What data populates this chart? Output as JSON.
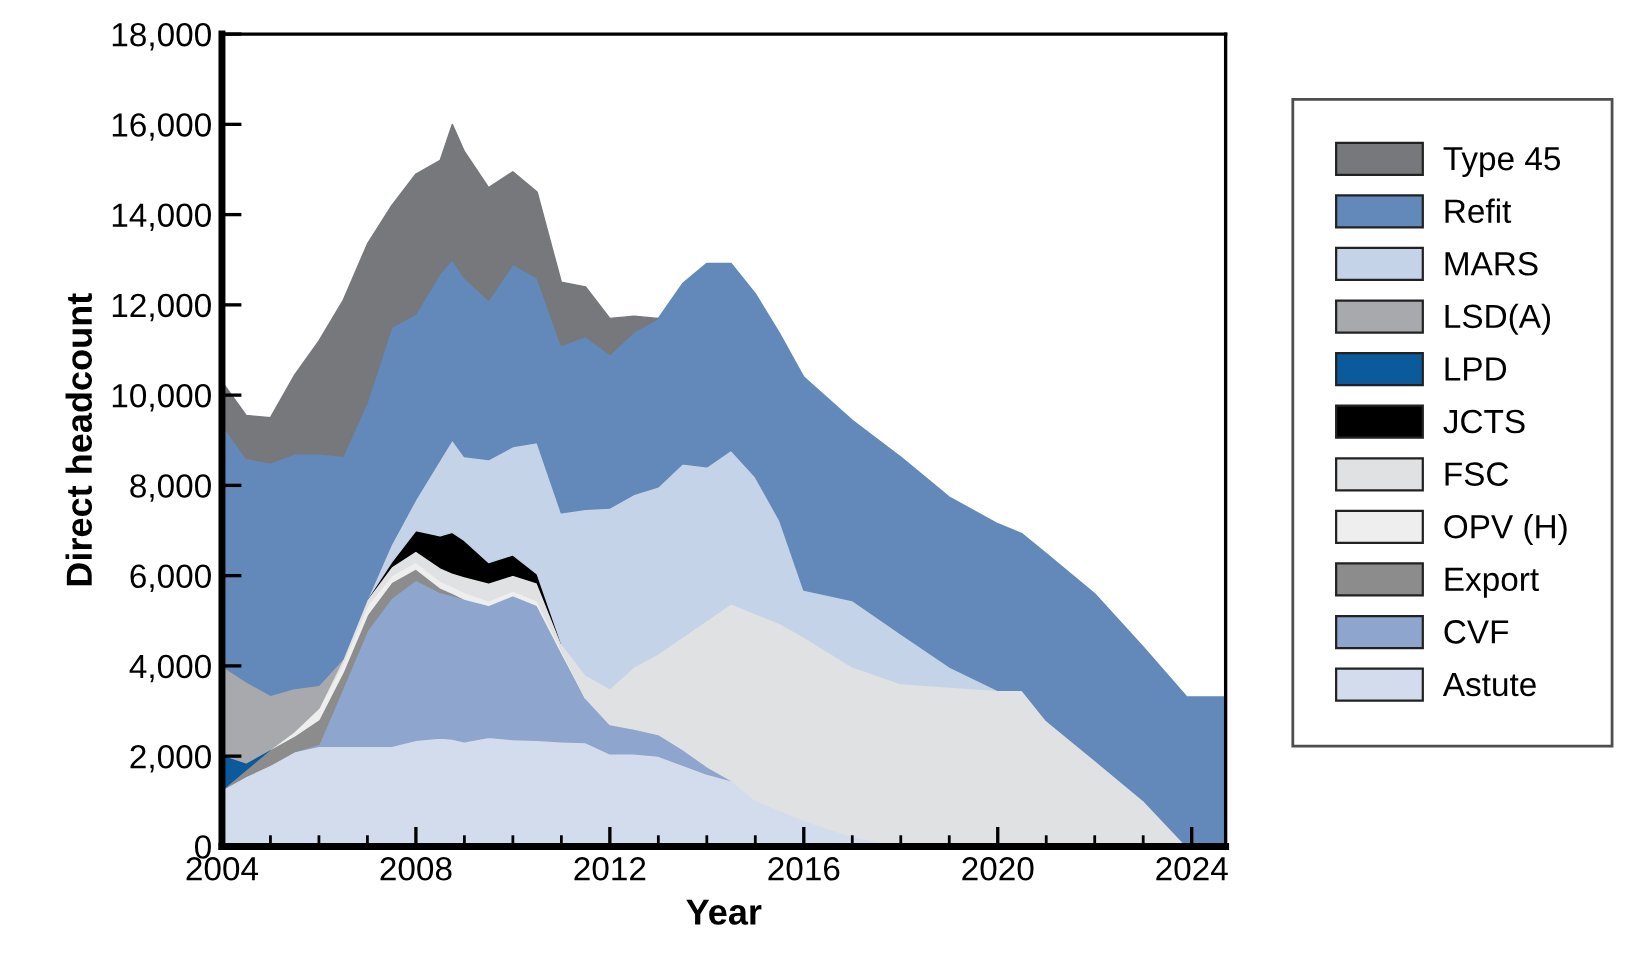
{
  "chart_data": {
    "type": "area",
    "stacked": true,
    "xlabel": "Year",
    "ylabel": "Direct headcount",
    "x": [
      2004,
      2004.5,
      2005,
      2005.5,
      2006,
      2006.5,
      2007,
      2007.5,
      2008,
      2008.5,
      2008.75,
      2009,
      2009.5,
      2010,
      2010.5,
      2011,
      2011.5,
      2012,
      2012.5,
      2013,
      2013.5,
      2014,
      2014.5,
      2015,
      2015.5,
      2016,
      2017,
      2018,
      2019,
      2020,
      2020.5,
      2021,
      2022,
      2023,
      2023.9,
      2024,
      2024.7
    ],
    "xlim": [
      2004,
      2024.7
    ],
    "xticks": [
      2004,
      2008,
      2012,
      2016,
      2020,
      2024
    ],
    "ylim": [
      0,
      18000
    ],
    "yticks": [
      0,
      {
        "value": 2000,
        "label": "2,000"
      },
      {
        "value": 4000,
        "label": "4,000"
      },
      {
        "value": 6000,
        "label": "6,000"
      },
      {
        "value": 8000,
        "label": "8,000"
      },
      {
        "value": 10000,
        "label": "10,000"
      },
      {
        "value": 12000,
        "label": "12,000"
      },
      {
        "value": 14000,
        "label": "14,000"
      },
      {
        "value": 16000,
        "label": "16,000"
      },
      {
        "value": 18000,
        "label": "18,000"
      }
    ],
    "grid": false,
    "legend": "right",
    "series": [
      {
        "name": "Astute",
        "color": "#d3dcec",
        "values": [
          1250,
          1550,
          1800,
          2100,
          2220,
          2220,
          2220,
          2220,
          2350,
          2400,
          2380,
          2320,
          2420,
          2370,
          2350,
          2320,
          2300,
          2050,
          2050,
          2000,
          1800,
          1600,
          1460,
          1020,
          800,
          580,
          220,
          0,
          null,
          null,
          null,
          null,
          null,
          null,
          null,
          null,
          null
        ]
      },
      {
        "name": "CVF",
        "color": "#8ea5cd",
        "values": [
          null,
          null,
          null,
          0,
          40,
          1290,
          2560,
          3280,
          3550,
          3230,
          3180,
          3160,
          2920,
          3190,
          2990,
          1980,
          980,
          650,
          550,
          480,
          350,
          170,
          0,
          null,
          null,
          null,
          null,
          null,
          null,
          null,
          null,
          null,
          null,
          null,
          null,
          null,
          null
        ]
      },
      {
        "name": "Export",
        "color": "#8c8c8c",
        "values": [
          0,
          150,
          350,
          350,
          550,
          350,
          350,
          350,
          250,
          100,
          50,
          0,
          null,
          null,
          null,
          null,
          null,
          null,
          null,
          null,
          null,
          null,
          null,
          null,
          null,
          null,
          null,
          null,
          null,
          null,
          null,
          null,
          null,
          null,
          null,
          null,
          null
        ]
      },
      {
        "name": "OPV (H)",
        "color": "#eeeeee",
        "values": [
          null,
          null,
          0,
          100,
          250,
          200,
          200,
          150,
          150,
          150,
          150,
          150,
          100,
          100,
          100,
          50,
          0,
          null,
          null,
          null,
          null,
          null,
          null,
          null,
          null,
          null,
          null,
          null,
          null,
          null,
          null,
          null,
          null,
          null,
          null,
          null,
          null
        ]
      },
      {
        "name": "FSC",
        "color": "#e0e1e2",
        "values": [
          null,
          null,
          null,
          null,
          0,
          100,
          150,
          200,
          250,
          300,
          300,
          350,
          400,
          350,
          400,
          150,
          520,
          800,
          1380,
          1790,
          2490,
          3240,
          3920,
          4140,
          4140,
          4060,
          3760,
          3610,
          3530,
          3460,
          3460,
          2790,
          1910,
          1020,
          0,
          null,
          null
        ]
      },
      {
        "name": "JCTS",
        "color": "#000000",
        "values": [
          null,
          null,
          null,
          null,
          null,
          null,
          0,
          100,
          450,
          700,
          900,
          800,
          450,
          450,
          200,
          0,
          null,
          null,
          null,
          null,
          null,
          null,
          null,
          null,
          null,
          null,
          null,
          null,
          null,
          null,
          null,
          null,
          null,
          null,
          null,
          null,
          null
        ]
      },
      {
        "name": "LPD",
        "color": "#0a5a9c",
        "values": [
          780,
          150,
          0,
          null,
          null,
          null,
          null,
          null,
          null,
          null,
          null,
          null,
          null,
          null,
          null,
          null,
          null,
          null,
          null,
          null,
          null,
          null,
          null,
          null,
          null,
          null,
          null,
          null,
          null,
          null,
          null,
          null,
          null,
          null,
          null,
          null,
          null
        ]
      },
      {
        "name": "LSD(A)",
        "color": "#a7a9ac",
        "values": [
          1970,
          1800,
          1200,
          950,
          510,
          0,
          null,
          null,
          null,
          null,
          null,
          null,
          null,
          null,
          null,
          null,
          null,
          null,
          null,
          null,
          null,
          null,
          null,
          null,
          null,
          null,
          null,
          null,
          null,
          null,
          null,
          null,
          null,
          null,
          null,
          null,
          null
        ]
      },
      {
        "name": "MARS",
        "color": "#c5d3e8",
        "values": [
          null,
          null,
          null,
          null,
          null,
          null,
          0,
          400,
          690,
          1690,
          2050,
          1860,
          2280,
          2400,
          2910,
          2890,
          3670,
          4000,
          3820,
          3700,
          3840,
          3400,
          3400,
          3030,
          2290,
          1040,
          1470,
          1100,
          450,
          0,
          null,
          null,
          null,
          null,
          null,
          null,
          null
        ]
      },
      {
        "name": "Refit",
        "color": "#6289b9",
        "values": [
          5350,
          4950,
          5150,
          5200,
          5130,
          4490,
          4370,
          4800,
          4110,
          4130,
          3990,
          3960,
          3530,
          4040,
          3650,
          3710,
          3830,
          3400,
          3600,
          3730,
          3990,
          4510,
          4140,
          4060,
          4140,
          4720,
          3990,
          3920,
          3760,
          3690,
          3470,
          3700,
          3690,
          3400,
          3310,
          3310,
          3310
        ]
      },
      {
        "name": "Type 45",
        "color": "#77787b",
        "values": [
          950,
          950,
          1000,
          1750,
          2500,
          3450,
          3500,
          2700,
          3100,
          2500,
          3000,
          2800,
          2500,
          2050,
          1900,
          1400,
          1100,
          800,
          350,
          0,
          null,
          null,
          null,
          null,
          null,
          null,
          null,
          null,
          null,
          null,
          null,
          null,
          null,
          null,
          null,
          null,
          null
        ]
      }
    ]
  }
}
